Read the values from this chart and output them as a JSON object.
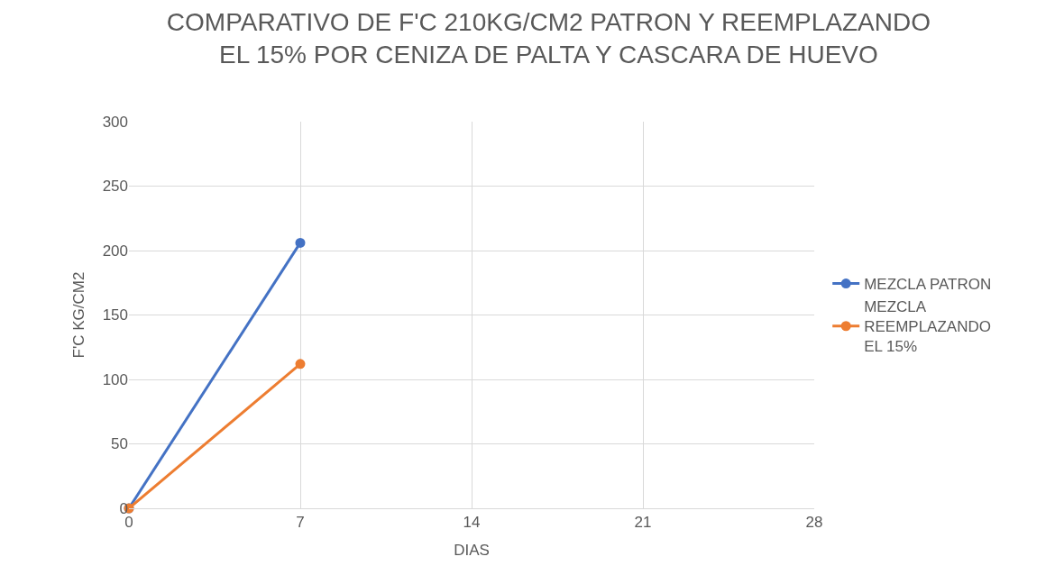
{
  "chart_data": {
    "type": "line",
    "title": "COMPARATIVO DE F'C 210KG/CM2 PATRON Y REEMPLAZANDO EL 15% POR CENIZA DE PALTA Y CASCARA DE HUEVO",
    "xlabel": "DIAS",
    "ylabel": "F'C KG/CM2",
    "x": [
      0,
      7
    ],
    "series": [
      {
        "name": "MEZCLA PATRON",
        "color": "#4472c4",
        "values": [
          0,
          206
        ]
      },
      {
        "name": "MEZCLA REEMPLAZANDO EL 15%",
        "color": "#ed7d31",
        "values": [
          0,
          112
        ]
      }
    ],
    "xlim": [
      0,
      28
    ],
    "xticks": [
      0,
      7,
      14,
      21,
      28
    ],
    "ylim": [
      0,
      300
    ],
    "yticks": [
      0,
      50,
      100,
      150,
      200,
      250,
      300
    ],
    "grid": true,
    "legend": "right",
    "marker": "circle",
    "line_style": "solid"
  }
}
